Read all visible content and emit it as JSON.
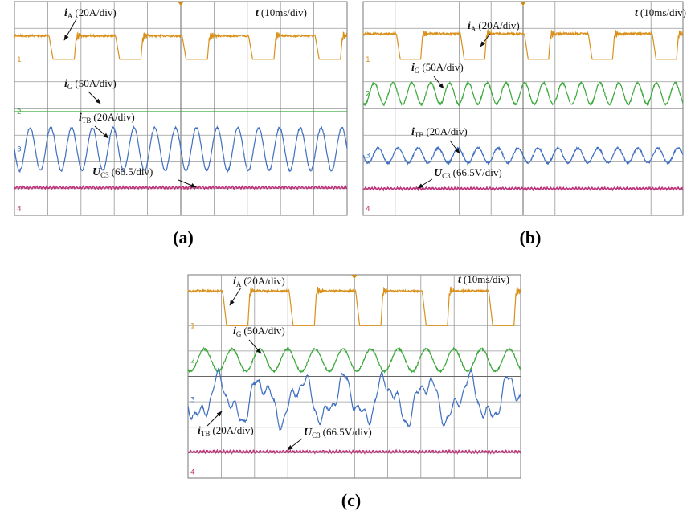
{
  "panels": [
    {
      "caption": "(a)",
      "channels": [
        "1",
        "2",
        "3",
        "4"
      ],
      "labels": [
        {
          "symbol": "i",
          "subscript": "A",
          "text": "(20A/div)"
        },
        {
          "symbol": "t",
          "text": "(10ms/div)"
        },
        {
          "symbol": "i",
          "subscript": "G",
          "text": "(50A/div)"
        },
        {
          "symbol": "i",
          "subscript": "TB",
          "text": "(20A/div)"
        },
        {
          "symbol": "U",
          "subscript": "C3",
          "text": "(66.5/div)"
        }
      ]
    },
    {
      "caption": "(b)",
      "channels": [
        "1",
        "2",
        "3",
        "4"
      ],
      "labels": [
        {
          "symbol": "i",
          "subscript": "A",
          "text": "(20A/div)"
        },
        {
          "symbol": "t",
          "text": "(10ms/div)"
        },
        {
          "symbol": "i",
          "subscript": "G",
          "text": "(50A/div)"
        },
        {
          "symbol": "i",
          "subscript": "TB",
          "text": "(20A/div)"
        },
        {
          "symbol": "U",
          "subscript": "C3",
          "text": "(66.5V/div)"
        }
      ]
    },
    {
      "caption": "(c)",
      "channels": [
        "1",
        "2",
        "3",
        "4"
      ],
      "labels": [
        {
          "symbol": "i",
          "subscript": "A",
          "text": "(20A/div)"
        },
        {
          "symbol": "t",
          "text": "(10ms/div)"
        },
        {
          "symbol": "i",
          "subscript": "G",
          "text": "(50A/div)"
        },
        {
          "symbol": "i",
          "subscript": "TB",
          "text": "(20A/div)"
        },
        {
          "symbol": "U",
          "subscript": "C3",
          "text": "(66.5V/div)"
        }
      ]
    }
  ]
}
